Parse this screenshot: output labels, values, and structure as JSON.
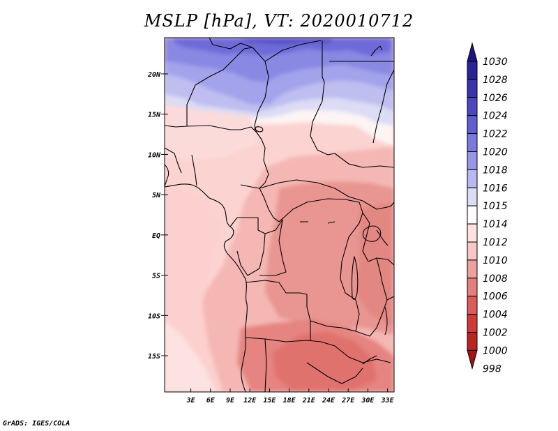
{
  "title": "MSLP [hPa], VT: 2020010712",
  "credit": "GrADS: IGES/COLA",
  "map": {
    "lon_range_deg": [
      -1,
      34
    ],
    "lat_range_deg": [
      -19.5,
      24.5
    ],
    "lat_ticks": [
      "20N",
      "15N",
      "10N",
      "5N",
      "EQ",
      "5S",
      "10S",
      "15S"
    ],
    "lon_ticks": [
      "3E",
      "6E",
      "9E",
      "12E",
      "15E",
      "18E",
      "21E",
      "24E",
      "27E",
      "30E",
      "33E"
    ]
  },
  "colorbar": {
    "levels": [
      "1030",
      "1028",
      "1026",
      "1024",
      "1022",
      "1020",
      "1018",
      "1016",
      "1015",
      "1014",
      "1012",
      "1010",
      "1008",
      "1006",
      "1004",
      "1002",
      "1000",
      "998"
    ],
    "colors": [
      "#1d1682",
      "#2b2496",
      "#3a34ad",
      "#4b47c2",
      "#5f5ed3",
      "#7a7ade",
      "#9797e8",
      "#b9b9f1",
      "#dcdcf7",
      "#fefcfc",
      "#fde2e0",
      "#f8c6c3",
      "#eda19e",
      "#e57f7b",
      "#dc5c58",
      "#cf3a36",
      "#bd2420",
      "#a61310"
    ]
  }
}
